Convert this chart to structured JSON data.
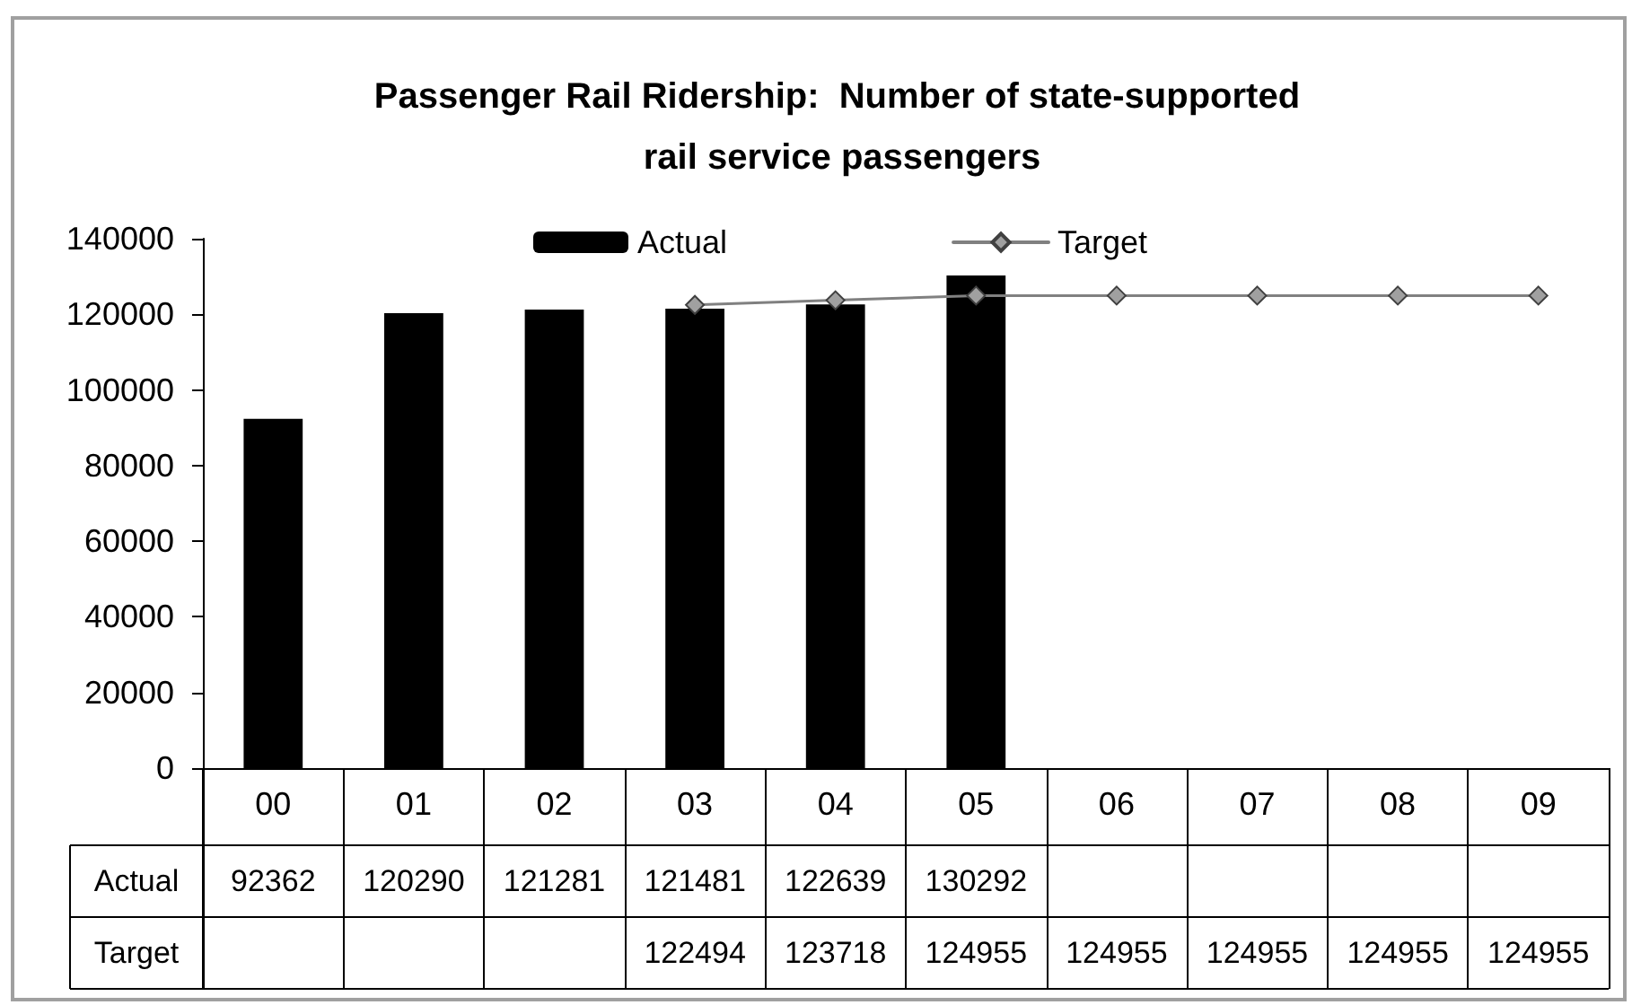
{
  "chart_data": {
    "type": "bar",
    "title": "Passenger Rail Ridership:  Number of state-supported rail service passengers",
    "categories": [
      "00",
      "01",
      "02",
      "03",
      "04",
      "05",
      "06",
      "07",
      "08",
      "09"
    ],
    "series": [
      {
        "name": "Actual",
        "color": "#000000",
        "values": [
          92362,
          120290,
          121281,
          121481,
          122639,
          130292,
          null,
          null,
          null,
          null
        ]
      },
      {
        "name": "Target",
        "type": "line",
        "color": "#808080",
        "values": [
          null,
          null,
          null,
          122494,
          123718,
          124955,
          124955,
          124955,
          124955,
          124955
        ]
      }
    ],
    "ylim": [
      0,
      140000
    ],
    "yticks": [
      0,
      20000,
      40000,
      60000,
      80000,
      100000,
      120000,
      140000
    ],
    "legend": "top",
    "marker": "diamond",
    "line_style": "solid",
    "data_labels": true
  }
}
